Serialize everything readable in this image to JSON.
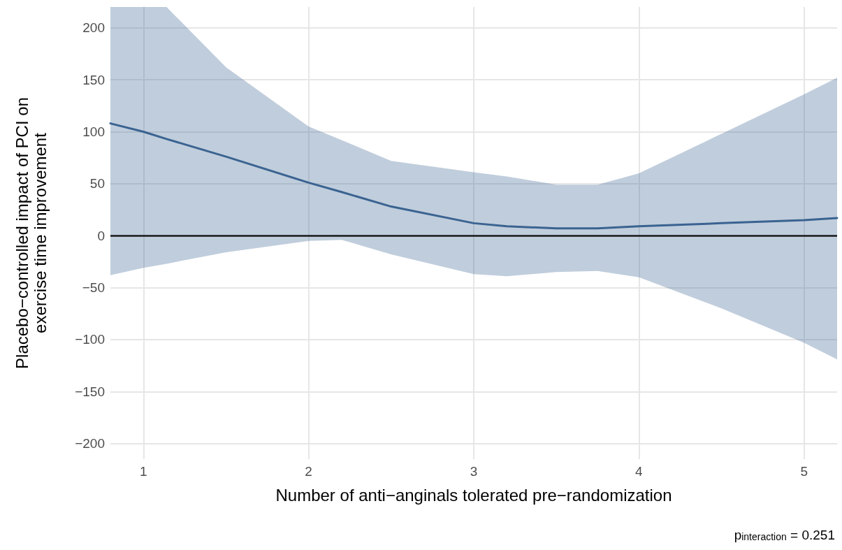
{
  "chart_data": {
    "type": "line",
    "xlabel": "Number of anti−anginals tolerated pre−randomization",
    "ylabel": "Placebo−controlled impact of PCI on\nexercise time improvement",
    "x": [
      0.8,
      1,
      1.14,
      1.5,
      2,
      2.2,
      2.5,
      3,
      3.2,
      3.5,
      3.75,
      4,
      4.5,
      5,
      5.2
    ],
    "series": [
      {
        "color": "#3a6391",
        "values": [
          108,
          100,
          93,
          76,
          51,
          42,
          28,
          12,
          9,
          7,
          7,
          9,
          12,
          15,
          17
        ],
        "upper": [
          220,
          220,
          220,
          162,
          105,
          92,
          72,
          61,
          57,
          49,
          49,
          60,
          98,
          136,
          152
        ],
        "lower": [
          -38,
          -31,
          -27,
          -16,
          -5,
          -4,
          -18,
          -37,
          -39,
          -35,
          -34,
          -40,
          -70,
          -103,
          -119
        ]
      }
    ],
    "xlim": [
      0.8,
      5.2
    ],
    "xticks": [
      1,
      2,
      3,
      4,
      5
    ],
    "ylim": [
      -215,
      220
    ],
    "yticks": [
      {
        "value": -200,
        "label": "−200"
      },
      {
        "value": -150,
        "label": "−150"
      },
      {
        "value": -100,
        "label": "−100"
      },
      {
        "value": -50,
        "label": "−50"
      },
      0,
      50,
      100,
      150,
      200
    ],
    "ref_lines": [
      {
        "axis": "y",
        "value": 0,
        "color": "#1a1a1a"
      }
    ],
    "grid": true,
    "marker": "none",
    "line_style": "solid",
    "annotations": [
      "p$_{interaction}$ = 0.251"
    ]
  }
}
